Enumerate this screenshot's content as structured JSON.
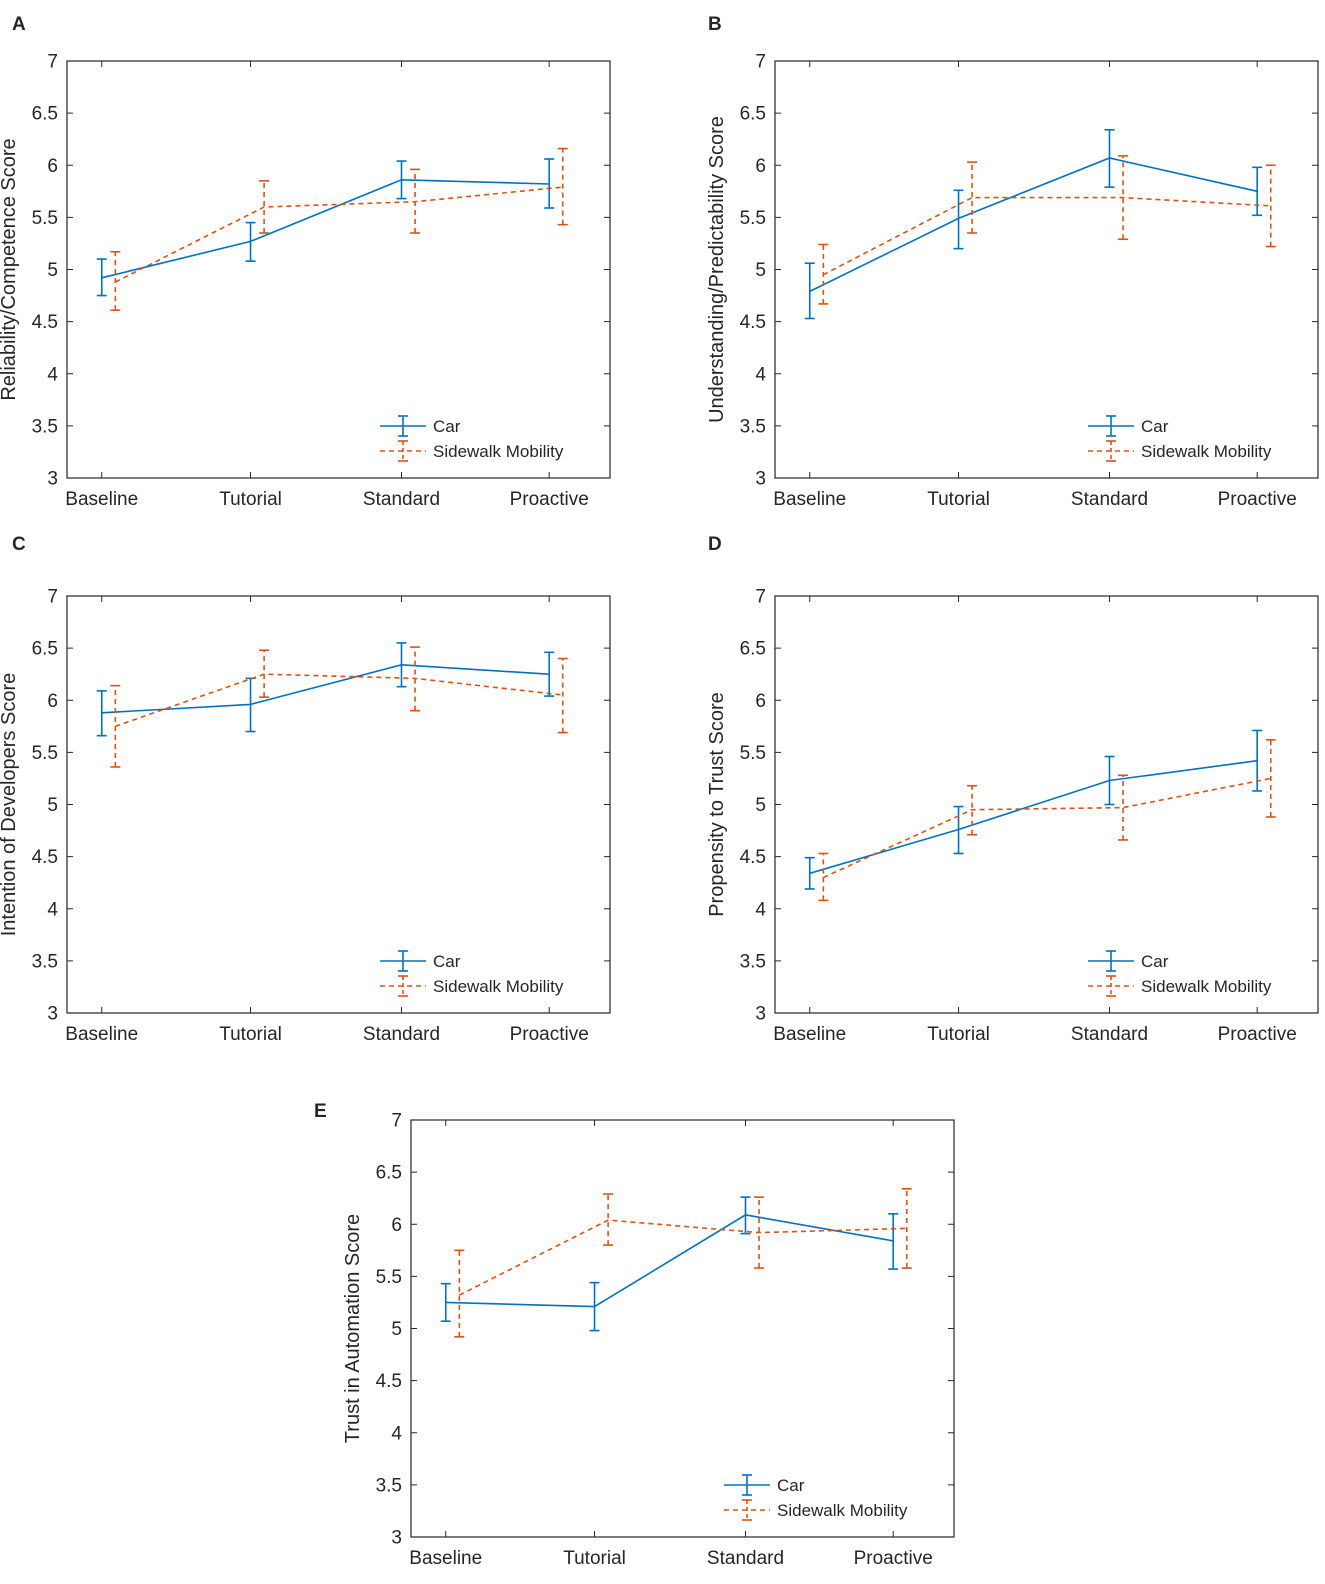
{
  "figure": {
    "colors": {
      "car": "#0072bd",
      "sidewalk": "#d95319",
      "axis": "#262626",
      "tick": "#262626"
    }
  },
  "chart_data": [
    {
      "panel": "A",
      "type": "line",
      "categories": [
        "Baseline",
        "Tutorial",
        "Standard",
        "Proactive"
      ],
      "ylabel": "Reliability/Competence Score",
      "xlabel": "",
      "ylim": [
        3,
        7
      ],
      "yticks": [
        "3",
        "3.5",
        "4",
        "4.5",
        "5",
        "5.5",
        "6",
        "6.5",
        "7"
      ],
      "legend": [
        "Car",
        "Sidewalk Mobility"
      ],
      "legend_position": "bottom-right",
      "series": [
        {
          "name": "Car",
          "style": "solid",
          "values": [
            4.92,
            5.27,
            5.86,
            5.82
          ],
          "lower": [
            4.75,
            5.08,
            5.68,
            5.59
          ],
          "upper": [
            5.1,
            5.45,
            6.04,
            6.06
          ]
        },
        {
          "name": "Sidewalk Mobility",
          "style": "dashed",
          "values": [
            4.88,
            5.6,
            5.65,
            5.79
          ],
          "lower": [
            4.61,
            5.35,
            5.35,
            5.43
          ],
          "upper": [
            5.17,
            5.85,
            5.96,
            6.16
          ]
        }
      ]
    },
    {
      "panel": "B",
      "type": "line",
      "categories": [
        "Baseline",
        "Tutorial",
        "Standard",
        "Proactive"
      ],
      "ylabel": "Understanding/Predictability Score",
      "xlabel": "",
      "ylim": [
        3,
        7
      ],
      "yticks": [
        "3",
        "3.5",
        "4",
        "4.5",
        "5",
        "5.5",
        "6",
        "6.5",
        "7"
      ],
      "legend": [
        "Car",
        "Sidewalk Mobility"
      ],
      "legend_position": "bottom-right",
      "series": [
        {
          "name": "Car",
          "style": "solid",
          "values": [
            4.79,
            5.49,
            6.07,
            5.75
          ],
          "lower": [
            4.53,
            5.2,
            5.79,
            5.52
          ],
          "upper": [
            5.06,
            5.76,
            6.34,
            5.98
          ]
        },
        {
          "name": "Sidewalk Mobility",
          "style": "dashed",
          "values": [
            4.95,
            5.69,
            5.69,
            5.61
          ],
          "lower": [
            4.67,
            5.35,
            5.29,
            5.22
          ],
          "upper": [
            5.24,
            6.03,
            6.09,
            6.0
          ]
        }
      ]
    },
    {
      "panel": "C",
      "type": "line",
      "categories": [
        "Baseline",
        "Tutorial",
        "Standard",
        "Proactive"
      ],
      "ylabel": "Intention of Developers Score",
      "xlabel": "",
      "ylim": [
        3,
        7
      ],
      "yticks": [
        "3",
        "3.5",
        "4",
        "4.5",
        "5",
        "5.5",
        "6",
        "6.5",
        "7"
      ],
      "legend": [
        "Car",
        "Sidewalk Mobility"
      ],
      "legend_position": "bottom-right",
      "series": [
        {
          "name": "Car",
          "style": "solid",
          "values": [
            5.88,
            5.96,
            6.34,
            6.25
          ],
          "lower": [
            5.66,
            5.7,
            6.13,
            6.04
          ],
          "upper": [
            6.09,
            6.21,
            6.55,
            6.46
          ]
        },
        {
          "name": "Sidewalk Mobility",
          "style": "dashed",
          "values": [
            5.75,
            6.25,
            6.21,
            6.05
          ],
          "lower": [
            5.36,
            6.03,
            5.9,
            5.69
          ],
          "upper": [
            6.14,
            6.48,
            6.51,
            6.4
          ]
        }
      ]
    },
    {
      "panel": "D",
      "type": "line",
      "categories": [
        "Baseline",
        "Tutorial",
        "Standard",
        "Proactive"
      ],
      "ylabel": "Propensity to Trust Score",
      "xlabel": "",
      "ylim": [
        3,
        7
      ],
      "yticks": [
        "3",
        "3.5",
        "4",
        "4.5",
        "5",
        "5.5",
        "6",
        "6.5",
        "7"
      ],
      "legend": [
        "Car",
        "Sidewalk Mobility"
      ],
      "legend_position": "bottom-right",
      "series": [
        {
          "name": "Car",
          "style": "solid",
          "values": [
            4.34,
            4.76,
            5.23,
            5.42
          ],
          "lower": [
            4.19,
            4.53,
            5.0,
            5.13
          ],
          "upper": [
            4.49,
            4.98,
            5.46,
            5.71
          ]
        },
        {
          "name": "Sidewalk Mobility",
          "style": "dashed",
          "values": [
            4.3,
            4.95,
            4.97,
            5.25
          ],
          "lower": [
            4.08,
            4.71,
            4.66,
            4.88
          ],
          "upper": [
            4.53,
            5.18,
            5.28,
            5.62
          ]
        }
      ]
    },
    {
      "panel": "E",
      "type": "line",
      "categories": [
        "Baseline",
        "Tutorial",
        "Standard",
        "Proactive"
      ],
      "ylabel": "Trust in Automation Score",
      "xlabel": "",
      "ylim": [
        3,
        7
      ],
      "yticks": [
        "3",
        "3.5",
        "4",
        "4.5",
        "5",
        "5.5",
        "6",
        "6.5",
        "7"
      ],
      "legend": [
        "Car",
        "Sidewalk Mobility"
      ],
      "legend_position": "bottom-right",
      "series": [
        {
          "name": "Car",
          "style": "solid",
          "values": [
            5.25,
            5.21,
            6.09,
            5.84
          ],
          "lower": [
            5.07,
            4.98,
            5.91,
            5.57
          ],
          "upper": [
            5.43,
            5.44,
            6.26,
            6.1
          ]
        },
        {
          "name": "Sidewalk Mobility",
          "style": "dashed",
          "values": [
            5.32,
            6.04,
            5.92,
            5.96
          ],
          "lower": [
            4.92,
            5.8,
            5.58,
            5.58
          ],
          "upper": [
            5.75,
            6.29,
            6.26,
            6.34
          ]
        }
      ]
    }
  ]
}
